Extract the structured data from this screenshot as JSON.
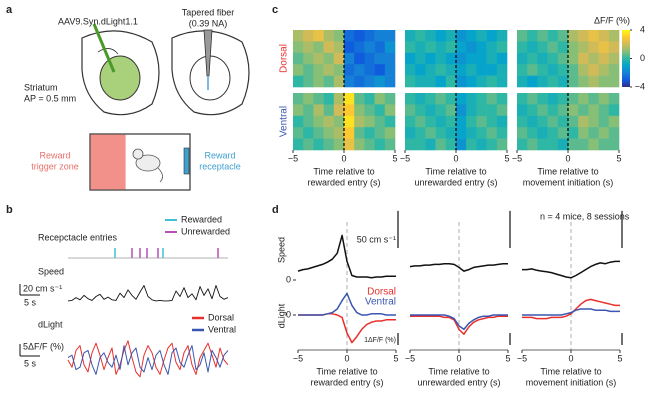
{
  "panels": {
    "a": {
      "label": "a",
      "virus": "AAV9.Syn.dLight1.1",
      "fiber": "Tapered fiber",
      "fiber_na": "(0.39 NA)",
      "region": "Striatum",
      "ap": "AP = 0.5 mm",
      "zone": [
        "Reward",
        "trigger zone"
      ],
      "receptacle": [
        "Reward",
        "receptacle"
      ]
    },
    "b": {
      "label": "b",
      "entries_title": "Recepctacle entries",
      "tlim": [
        0,
        40
      ],
      "entries": [
        {
          "name": "Rewarded",
          "color": "#3fc1d1",
          "times": [
            11.75,
            23.75
          ]
        },
        {
          "name": "Unrewarded",
          "color": "#b54fb8",
          "times": [
            16,
            18,
            19.75,
            22.5,
            37.5
          ]
        }
      ],
      "speed_title": "Speed",
      "speed_ylim": [
        0,
        40
      ],
      "speed_scale": {
        "value": 20,
        "label": "20 cm s⁻¹"
      },
      "speed_time_scale": {
        "value": 5,
        "label": "5 s"
      },
      "speed": [
        2,
        3,
        8,
        4,
        12,
        6,
        3,
        10,
        14,
        5,
        9,
        4,
        3,
        16,
        8,
        22,
        12,
        5,
        18,
        30,
        10,
        4,
        2,
        3,
        2,
        2,
        3,
        20,
        10,
        26,
        8,
        15,
        4,
        28,
        12,
        24,
        6,
        30,
        10,
        5,
        8
      ],
      "dlight_title": "dLight",
      "dlight_ylim": [
        -10,
        10
      ],
      "dlight_scale": {
        "value": 5,
        "label": "5ΔF/F (%)"
      },
      "dlight_time_scale": {
        "value": 5,
        "label": "5 s"
      },
      "series": [
        {
          "name": "Dorsal",
          "color": "#e8302c",
          "values": [
            0,
            -3,
            4,
            6,
            -2,
            -5,
            3,
            7,
            2,
            -4,
            1,
            5,
            -6,
            -2,
            4,
            8,
            1,
            -5,
            -7,
            2,
            6,
            3,
            -3,
            -6,
            0,
            5,
            7,
            -1,
            -4,
            3,
            6,
            -2,
            -6,
            1,
            4,
            7,
            2,
            -3,
            5,
            0,
            -2
          ]
        },
        {
          "name": "Ventral",
          "color": "#3a56b0",
          "values": [
            1,
            2,
            -4,
            -3,
            3,
            4,
            -2,
            -6,
            1,
            3,
            -1,
            -3,
            2,
            -4,
            6,
            -2,
            3,
            5,
            -3,
            -5,
            1,
            -4,
            2,
            4,
            -2,
            -6,
            3,
            5,
            -1,
            -3,
            2,
            6,
            -4,
            -2,
            3,
            -5,
            4,
            1,
            -3,
            2,
            4
          ]
        }
      ]
    },
    "c": {
      "label": "c",
      "colorbar_title": "ΔF/F (%)",
      "clim": [
        -4,
        4
      ],
      "cticks": [
        4,
        0,
        {
          "value": -4,
          "label": "−4"
        }
      ],
      "colormap": [
        "#352a87",
        "#0f5cdd",
        "#1481d6",
        "#06a4ca",
        "#2eb7a4",
        "#87bf77",
        "#d1bb59",
        "#fec832",
        "#f9fb0e"
      ],
      "xlim": [
        -5,
        5
      ],
      "xticks": [
        {
          "value": -5,
          "label": "−5"
        },
        0,
        5
      ],
      "xlabels": [
        [
          "Time relative to",
          "rewarded entry (s)"
        ],
        [
          "Time relative to",
          "unrewarded entry (s)"
        ],
        [
          "Time relative to",
          "movement initiation (s)"
        ]
      ],
      "rows": [
        {
          "name": "Dorsal",
          "color": "#e8302c",
          "maps": [
            [
              [
                1.5,
                2,
                2.5,
                1.5,
                1,
                -2.5,
                -3,
                -2.5,
                -2,
                -2
              ],
              [
                1,
                1.5,
                1,
                2,
                1.5,
                -3,
                -2.5,
                -2,
                -2.5,
                -1.5
              ],
              [
                0.5,
                1,
                1.5,
                1,
                2,
                -2,
                -3,
                -2.5,
                -2,
                -2
              ],
              [
                1,
                0.5,
                1,
                1.5,
                1,
                -2.5,
                -2,
                -2.5,
                -3,
                -2
              ],
              [
                0,
                0.5,
                1,
                0.5,
                1.5,
                -2,
                -2.5,
                -2,
                -1.5,
                -2
              ]
            ],
            [
              [
                -0.5,
                0,
                -0.5,
                -1,
                -0.5,
                -1.5,
                -1,
                -0.5,
                -1,
                -0.5
              ],
              [
                0,
                -0.5,
                0,
                -0.5,
                0,
                -1,
                -1.5,
                -1,
                -0.5,
                0
              ],
              [
                -1,
                -0.5,
                -1,
                -0.5,
                -1,
                -1.5,
                -1,
                -1,
                -0.5,
                -1
              ],
              [
                -0.5,
                -1,
                -0.5,
                0,
                -0.5,
                -1,
                -0.5,
                -1,
                -1,
                -0.5
              ],
              [
                0,
                -0.5,
                -0.5,
                -1,
                0,
                -1.5,
                -1,
                -0.5,
                0,
                -0.5
              ]
            ],
            [
              [
                0.5,
                0,
                0.5,
                0,
                0.5,
                1.5,
                2,
                2.5,
                2,
                1.5
              ],
              [
                0,
                -0.5,
                0,
                0.5,
                0,
                1,
                1.5,
                2,
                2.5,
                2
              ],
              [
                -0.5,
                0,
                -0.5,
                0,
                0.5,
                1,
                2,
                1.5,
                2,
                1.5
              ],
              [
                0,
                0.5,
                0,
                -0.5,
                0,
                0.5,
                1.5,
                2,
                1.5,
                1
              ],
              [
                -0.5,
                -1,
                -0.5,
                0,
                -0.5,
                0.5,
                1,
                1.5,
                1,
                1
              ]
            ]
          ]
        },
        {
          "name": "Ventral",
          "color": "#3a56b0",
          "maps": [
            [
              [
                0.5,
                1,
                0.5,
                0,
                1.5,
                3.5,
                0.5,
                0,
                1,
                0.5
              ],
              [
                1,
                0.5,
                1.5,
                0.5,
                2,
                3,
                1,
                0.5,
                0,
                1
              ],
              [
                0,
                0.5,
                1,
                1.5,
                1,
                3.5,
                1.5,
                1,
                0.5,
                0
              ],
              [
                0.5,
                0,
                0.5,
                1,
                1.5,
                3,
                0.5,
                0,
                0.5,
                1
              ],
              [
                0,
                0.5,
                0,
                0.5,
                1,
                2.5,
                1,
                0.5,
                0,
                0.5
              ]
            ],
            [
              [
                0,
                -0.5,
                0,
                0.5,
                0,
                -1,
                -0.5,
                0,
                0.5,
                0
              ],
              [
                0.5,
                0,
                -0.5,
                0,
                0.5,
                -1.5,
                -0.5,
                0,
                0,
                0.5
              ],
              [
                0,
                0.5,
                0,
                -0.5,
                0,
                -1,
                0,
                0.5,
                0,
                -0.5
              ],
              [
                -0.5,
                0,
                0.5,
                0,
                -0.5,
                -1,
                -0.5,
                0,
                0.5,
                0
              ],
              [
                0,
                0,
                -0.5,
                0.5,
                0,
                -1.5,
                0,
                -0.5,
                0,
                0.5
              ]
            ],
            [
              [
                0,
                0.5,
                0,
                -0.5,
                0,
                0.5,
                1,
                0.5,
                1,
                0.5
              ],
              [
                -0.5,
                0,
                0.5,
                0,
                0.5,
                1,
                0.5,
                1,
                0.5,
                0
              ],
              [
                0,
                -0.5,
                0,
                0.5,
                0,
                0.5,
                1.5,
                1,
                0.5,
                1
              ],
              [
                0.5,
                0,
                -0.5,
                0,
                0.5,
                0,
                1,
                0.5,
                1,
                0.5
              ],
              [
                0,
                0.5,
                0,
                0,
                -0.5,
                0.5,
                0.5,
                1,
                0.5,
                0.5
              ]
            ]
          ]
        }
      ]
    },
    "d": {
      "label": "d",
      "note": "n = 4 mice, 8 sessions",
      "xlim": [
        -5,
        5
      ],
      "xticks": [
        {
          "value": -5,
          "label": "−5"
        },
        0,
        5
      ],
      "xlabels": [
        [
          "Time relative to",
          "rewarded entry (s)"
        ],
        [
          "Time relative to",
          "unrewarded entry (s)"
        ],
        [
          "Time relative to",
          "movement initiation (s)"
        ]
      ],
      "speed_title": "Speed",
      "speed_ylim": [
        0,
        70
      ],
      "speed_yticks": [
        0
      ],
      "speed_scale": {
        "value": 50,
        "label": "50 cm s⁻¹"
      },
      "dlight_title": "dLight",
      "dlight_ylim": [
        -2.5,
        2.5
      ],
      "dlight_yticks": [
        0
      ],
      "dlight_scale": {
        "value": 1,
        "label": "1ΔF/F (%)"
      },
      "speed_color": "#111111",
      "legend": [
        {
          "name": "Dorsal",
          "color": "#e8302c"
        },
        {
          "name": "Ventral",
          "color": "#3a56b0"
        }
      ],
      "columns": [
        {
          "speed": [
            12,
            14,
            15,
            17,
            19,
            21,
            24,
            28,
            36,
            60,
            25,
            6,
            4,
            4,
            4,
            3,
            4,
            4,
            5,
            5,
            5
          ],
          "dorsal": [
            0,
            0,
            0,
            0,
            0,
            0,
            0.1,
            0.1,
            0,
            -0.2,
            -1.5,
            -2.3,
            -1.8,
            -1.2,
            -0.8,
            -0.6,
            -0.5,
            -0.5,
            -0.4,
            -0.4,
            -0.4
          ],
          "ventral": [
            0,
            0,
            0,
            0,
            0,
            0,
            0.1,
            0.2,
            0.5,
            1.2,
            1.8,
            0.8,
            0.2,
            0,
            0,
            0.1,
            0.1,
            0.1,
            0,
            0,
            0
          ]
        },
        {
          "speed": [
            18,
            19,
            19,
            20,
            20,
            21,
            21,
            22,
            22,
            21,
            17,
            12,
            14,
            17,
            18,
            19,
            20,
            20,
            21,
            22,
            22
          ],
          "dorsal": [
            -0.1,
            -0.1,
            -0.1,
            -0.1,
            -0.1,
            -0.1,
            -0.1,
            -0.2,
            -0.2,
            -0.4,
            -1.2,
            -1.6,
            -1.0,
            -0.6,
            -0.4,
            -0.3,
            -0.2,
            -0.2,
            -0.1,
            -0.1,
            -0.1
          ],
          "ventral": [
            0,
            0,
            0,
            0,
            0,
            0,
            0,
            0,
            -0.1,
            -0.3,
            -0.9,
            -1.2,
            -0.7,
            -0.4,
            -0.2,
            -0.1,
            -0.1,
            0,
            0,
            0,
            0
          ]
        },
        {
          "speed": [
            14,
            14,
            15,
            13,
            12,
            11,
            10,
            8,
            6,
            4,
            3,
            6,
            10,
            14,
            18,
            21,
            23,
            22,
            24,
            25,
            25
          ],
          "dorsal": [
            -0.2,
            -0.2,
            -0.2,
            -0.3,
            -0.3,
            -0.3,
            -0.2,
            -0.2,
            -0.2,
            -0.1,
            0.1,
            0.5,
            0.9,
            1.2,
            1.3,
            1.2,
            1.1,
            1.0,
            0.9,
            0.8,
            0.8
          ],
          "ventral": [
            0,
            0,
            0,
            0,
            0,
            0,
            0,
            0,
            0,
            0.1,
            0.2,
            0.4,
            0.5,
            0.5,
            0.5,
            0.4,
            0.4,
            0.4,
            0.3,
            0.3,
            0.3
          ]
        }
      ]
    }
  }
}
